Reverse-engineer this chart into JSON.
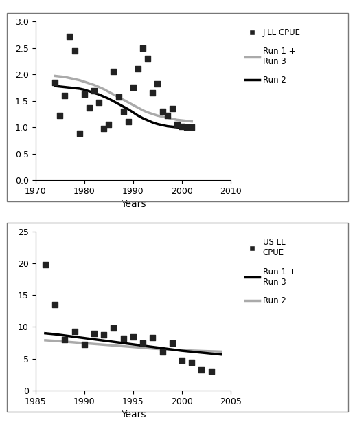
{
  "top": {
    "scatter_x": [
      1974,
      1975,
      1976,
      1977,
      1978,
      1979,
      1980,
      1981,
      1982,
      1983,
      1984,
      1985,
      1986,
      1987,
      1988,
      1989,
      1990,
      1991,
      1992,
      1993,
      1994,
      1995,
      1996,
      1997,
      1998,
      1999,
      2000,
      2001,
      2002
    ],
    "scatter_y": [
      1.85,
      1.22,
      1.6,
      2.72,
      2.45,
      0.88,
      1.62,
      1.36,
      1.69,
      1.47,
      0.98,
      1.05,
      2.05,
      1.57,
      1.3,
      1.1,
      1.75,
      2.1,
      2.5,
      2.3,
      1.65,
      1.82,
      1.3,
      1.22,
      1.35,
      1.05,
      1.02,
      1.0,
      1.0
    ],
    "run13_x": [
      1974,
      1975,
      1976,
      1977,
      1978,
      1979,
      1980,
      1981,
      1982,
      1983,
      1984,
      1985,
      1986,
      1987,
      1988,
      1989,
      1990,
      1991,
      1992,
      1993,
      1994,
      1995,
      1996,
      1997,
      1998,
      1999,
      2000,
      2001,
      2002
    ],
    "run13_y": [
      1.97,
      1.96,
      1.95,
      1.93,
      1.91,
      1.89,
      1.86,
      1.83,
      1.8,
      1.76,
      1.72,
      1.67,
      1.62,
      1.57,
      1.52,
      1.47,
      1.42,
      1.37,
      1.32,
      1.28,
      1.25,
      1.22,
      1.2,
      1.18,
      1.16,
      1.14,
      1.13,
      1.12,
      1.11
    ],
    "run2_x": [
      1974,
      1975,
      1976,
      1977,
      1978,
      1979,
      1980,
      1981,
      1982,
      1983,
      1984,
      1985,
      1986,
      1987,
      1988,
      1989,
      1990,
      1991,
      1992,
      1993,
      1994,
      1995,
      1996,
      1997,
      1998,
      1999,
      2000,
      2001,
      2002
    ],
    "run2_y": [
      1.78,
      1.77,
      1.76,
      1.75,
      1.74,
      1.73,
      1.71,
      1.68,
      1.65,
      1.62,
      1.58,
      1.54,
      1.49,
      1.44,
      1.39,
      1.34,
      1.28,
      1.22,
      1.17,
      1.13,
      1.09,
      1.06,
      1.04,
      1.02,
      1.01,
      1.0,
      0.99,
      0.98,
      0.97
    ],
    "run13_color": "#aaaaaa",
    "run2_color": "#000000",
    "scatter_color": "#222222",
    "xlim": [
      1970,
      2010
    ],
    "ylim": [
      0,
      3
    ],
    "xticks": [
      1970,
      1980,
      1990,
      2000,
      2010
    ],
    "yticks": [
      0,
      0.5,
      1.0,
      1.5,
      2.0,
      2.5,
      3.0
    ],
    "xlabel": "Years",
    "run13_legend": "Run 1 +\nRun 3",
    "run2_legend": "Run 2",
    "scatter_legend": "J LL CPUE"
  },
  "bottom": {
    "scatter_x": [
      1986,
      1987,
      1988,
      1989,
      1990,
      1991,
      1992,
      1993,
      1994,
      1995,
      1996,
      1997,
      1998,
      1999,
      2000,
      2001,
      2002,
      2003
    ],
    "scatter_y": [
      19.8,
      13.5,
      8.0,
      9.3,
      7.2,
      9.0,
      8.8,
      9.8,
      8.2,
      8.4,
      7.5,
      8.3,
      6.0,
      7.5,
      4.7,
      4.4,
      3.2,
      3.0
    ],
    "run13_x": [
      1986,
      1987,
      1988,
      1989,
      1990,
      1991,
      1992,
      1993,
      1994,
      1995,
      1996,
      1997,
      1998,
      1999,
      2000,
      2001,
      2002,
      2003,
      2004
    ],
    "run13_y": [
      9.0,
      8.85,
      8.65,
      8.45,
      8.25,
      8.05,
      7.85,
      7.65,
      7.45,
      7.25,
      7.05,
      6.85,
      6.65,
      6.45,
      6.25,
      6.1,
      5.95,
      5.8,
      5.65
    ],
    "run2_x": [
      1986,
      1987,
      1988,
      1989,
      1990,
      1991,
      1992,
      1993,
      1994,
      1995,
      1996,
      1997,
      1998,
      1999,
      2000,
      2001,
      2002,
      2003,
      2004
    ],
    "run2_y": [
      7.9,
      7.8,
      7.68,
      7.56,
      7.44,
      7.32,
      7.2,
      7.08,
      6.96,
      6.84,
      6.72,
      6.6,
      6.5,
      6.42,
      6.35,
      6.28,
      6.22,
      6.17,
      6.12
    ],
    "run13_color": "#000000",
    "run2_color": "#aaaaaa",
    "scatter_color": "#222222",
    "xlim": [
      1985,
      2005
    ],
    "ylim": [
      0,
      25
    ],
    "xticks": [
      1985,
      1990,
      1995,
      2000,
      2005
    ],
    "yticks": [
      0,
      5,
      10,
      15,
      20,
      25
    ],
    "xlabel": "Years",
    "scatter_legend": "US LL\nCPUE",
    "run13_legend": "Run 1 +\nRun 3",
    "run2_legend": "Run 2"
  },
  "bg_color": "#ffffff",
  "line_width": 2.5,
  "scatter_size": 35,
  "scatter_marker": "s",
  "outer_box_color": "#888888"
}
